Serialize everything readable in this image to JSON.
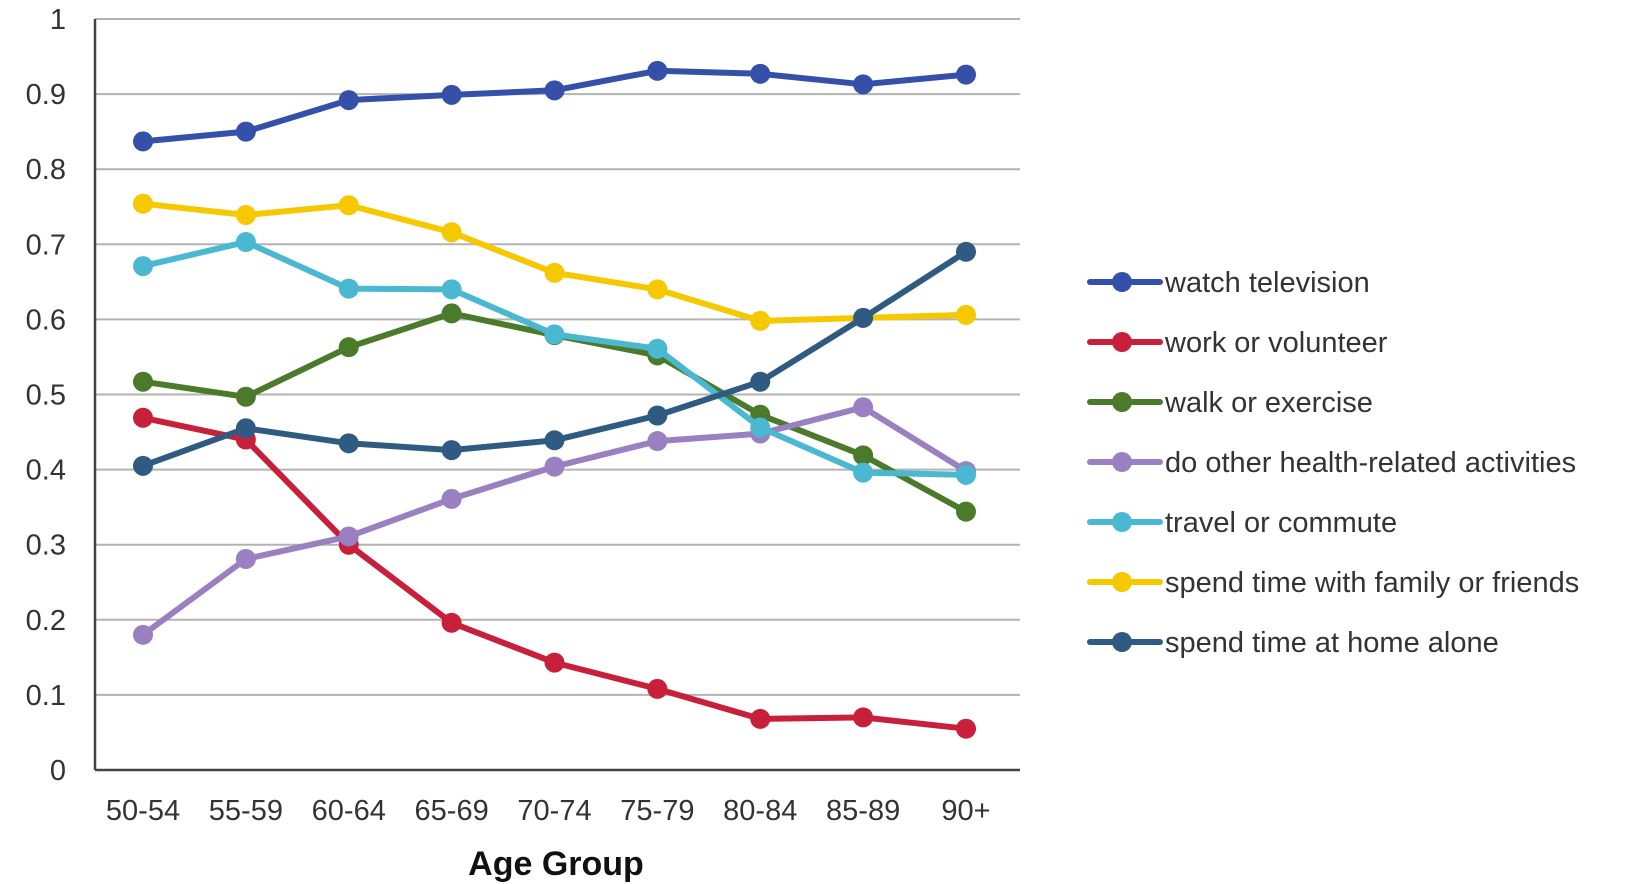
{
  "chart_data": {
    "type": "line",
    "title": "",
    "xlabel": "Age Group",
    "ylabel": "",
    "ylim": [
      0,
      1
    ],
    "yticks": [
      "0",
      "0.1",
      "0.2",
      "0.3",
      "0.4",
      "0.5",
      "0.6",
      "0.7",
      "0.8",
      "0.9",
      "1"
    ],
    "grid": "horizontal",
    "legend_position": "right",
    "categories": [
      "50-54",
      "55-59",
      "60-64",
      "65-69",
      "70-74",
      "75-79",
      "80-84",
      "85-89",
      "90+"
    ],
    "series": [
      {
        "name": "watch television",
        "color": "#3450a8",
        "values": [
          0.837,
          0.85,
          0.892,
          0.899,
          0.905,
          0.931,
          0.927,
          0.913,
          0.926
        ]
      },
      {
        "name": "work or volunteer",
        "color": "#c8203a",
        "values": [
          0.469,
          0.44,
          0.3,
          0.196,
          0.143,
          0.108,
          0.068,
          0.07,
          0.055
        ]
      },
      {
        "name": "walk or exercise",
        "color": "#4b7a2a",
        "values": [
          0.517,
          0.497,
          0.563,
          0.608,
          0.579,
          0.552,
          0.473,
          0.419,
          0.344
        ]
      },
      {
        "name": "do other health-related activities",
        "color": "#9a80c0",
        "values": [
          0.18,
          0.281,
          0.311,
          0.361,
          0.404,
          0.438,
          0.448,
          0.483,
          0.398
        ]
      },
      {
        "name": "travel or commute",
        "color": "#4bb8d2",
        "values": [
          0.671,
          0.703,
          0.641,
          0.64,
          0.58,
          0.561,
          0.456,
          0.396,
          0.393
        ]
      },
      {
        "name": "spend time with family or friends",
        "color": "#f5c800",
        "values": [
          0.754,
          0.739,
          0.752,
          0.716,
          0.662,
          0.64,
          0.598,
          0.602,
          0.606
        ]
      },
      {
        "name": "spend time at home alone",
        "color": "#2f5b82",
        "values": [
          0.405,
          0.455,
          0.435,
          0.426,
          0.439,
          0.472,
          0.517,
          0.602,
          0.69
        ]
      }
    ]
  }
}
